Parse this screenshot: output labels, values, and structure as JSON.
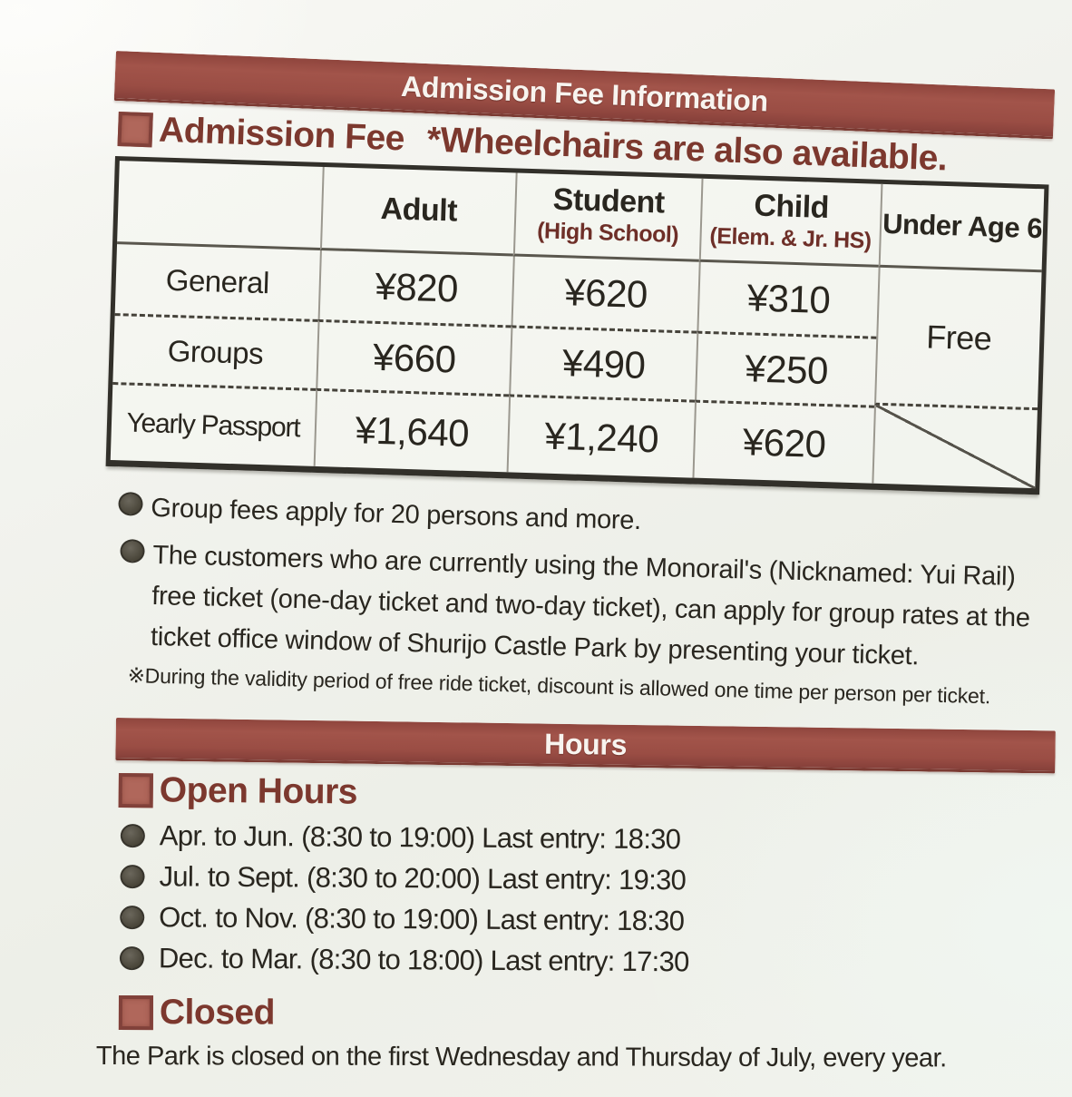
{
  "admission_banner": {
    "title": "Admission Fee Information"
  },
  "admission": {
    "heading": "Admission Fee",
    "wheelchair_note": "*Wheelchairs are also available."
  },
  "fee_table": {
    "header": {
      "adult": "Adult",
      "student_main": "Student",
      "student_sub": "(High School)",
      "child_main": "Child",
      "child_sub": "(Elem. & Jr. HS)",
      "under6": "Under Age 6"
    },
    "rows": [
      {
        "label": "General",
        "adult": "¥820",
        "student": "¥620",
        "child": "¥310"
      },
      {
        "label": "Groups",
        "adult": "¥660",
        "student": "¥490",
        "child": "¥250"
      },
      {
        "label": "Yearly Passport",
        "adult": "¥1,640",
        "student": "¥1,240",
        "child": "¥620"
      }
    ],
    "under6_value": "Free"
  },
  "notes": {
    "items": [
      "Group fees apply for 20 persons and more.",
      "The customers who are currently using the Monorail's (Nicknamed: Yui Rail) free ticket (one-day ticket and two-day ticket), can apply for group rates at the ticket office window of Shurijo Castle Park by presenting your ticket."
    ],
    "footnote": "※During the validity period of free ride ticket, discount is allowed one time per person per ticket."
  },
  "hours": {
    "banner_title": "Hours",
    "open_heading": "Open Hours",
    "items": [
      "Apr. to Jun. (8:30 to 19:00) Last entry: 18:30",
      "Jul. to Sept. (8:30 to 20:00) Last entry: 19:30",
      "Oct. to Nov. (8:30 to 19:00) Last entry: 18:30",
      "Dec. to Mar. (8:30 to 18:00) Last entry: 17:30"
    ],
    "closed_heading": "Closed",
    "closed_text": "The Park is closed on the first Wednesday and Thursday of July, every year."
  },
  "colors": {
    "banner_red": "#9a4d44",
    "heading_red": "#7c382e",
    "marker_fill": "#b0675b",
    "ink": "#29261f",
    "paper": "#f1f2ec"
  }
}
